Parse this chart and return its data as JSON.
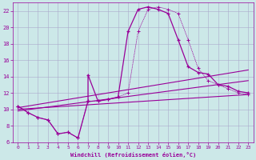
{
  "xlabel": "Windchill (Refroidissement éolien,°C)",
  "bg_color": "#cce8e8",
  "grid_color": "#aaaacc",
  "line_color": "#990099",
  "xlim": [
    -0.5,
    23.5
  ],
  "ylim": [
    6,
    23
  ],
  "xticks": [
    0,
    1,
    2,
    3,
    4,
    5,
    6,
    7,
    8,
    9,
    10,
    11,
    12,
    13,
    14,
    15,
    16,
    17,
    18,
    19,
    20,
    21,
    22,
    23
  ],
  "yticks": [
    6,
    8,
    10,
    12,
    14,
    16,
    18,
    20,
    22
  ],
  "curve1_x": [
    0,
    1,
    2,
    3,
    4,
    5,
    6,
    7,
    7,
    8,
    9,
    10,
    11,
    12,
    13,
    14,
    15,
    16,
    17,
    18,
    19,
    20,
    21,
    22,
    23
  ],
  "curve1_y": [
    10.4,
    9.6,
    9.0,
    8.7,
    7.0,
    7.2,
    6.5,
    11.0,
    14.2,
    11.0,
    11.2,
    11.5,
    19.5,
    22.2,
    22.5,
    22.2,
    21.7,
    18.5,
    15.2,
    14.5,
    14.3,
    13.0,
    12.8,
    12.2,
    12.0
  ],
  "curve2_x": [
    0,
    1,
    2,
    3,
    4,
    5,
    6,
    7,
    8,
    9,
    10,
    11,
    12,
    13,
    14,
    15,
    16,
    17,
    18,
    19,
    20,
    21,
    22,
    23
  ],
  "curve2_y": [
    10.4,
    9.6,
    9.0,
    8.7,
    7.0,
    7.2,
    6.5,
    11.0,
    11.0,
    11.2,
    11.5,
    12.0,
    19.5,
    22.2,
    22.5,
    22.2,
    21.7,
    18.5,
    15.0,
    13.5,
    13.0,
    12.5,
    12.0,
    11.8
  ],
  "line1_x": [
    0,
    23
  ],
  "line1_y": [
    9.8,
    13.5
  ],
  "line2_x": [
    0,
    23
  ],
  "line2_y": [
    10.2,
    14.8
  ],
  "line3_x": [
    0,
    23
  ],
  "line3_y": [
    10.0,
    11.8
  ]
}
